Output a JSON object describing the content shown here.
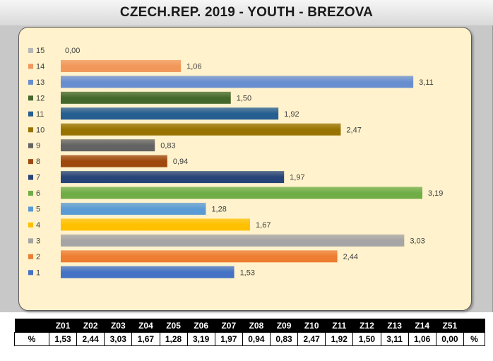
{
  "chart_data": {
    "type": "bar",
    "orientation": "horizontal",
    "title": "CZECH.REP. 2019 - YOUTH - BREZOVA",
    "categories": [
      "1",
      "2",
      "3",
      "4",
      "5",
      "6",
      "7",
      "8",
      "9",
      "10",
      "11",
      "12",
      "13",
      "14",
      "15"
    ],
    "values": [
      1.53,
      2.44,
      3.03,
      1.67,
      1.28,
      3.19,
      1.97,
      0.94,
      0.83,
      2.47,
      1.92,
      1.5,
      3.11,
      1.06,
      0.0
    ],
    "value_labels": [
      "1,53",
      "2,44",
      "3,03",
      "1,67",
      "1,28",
      "3,19",
      "1,97",
      "0,94",
      "0,83",
      "2,47",
      "1,92",
      "1,50",
      "3,11",
      "1,06",
      "0,00"
    ],
    "colors": [
      "#4472c4",
      "#ed7d31",
      "#a5a5a5",
      "#ffc000",
      "#5b9bd5",
      "#70ad47",
      "#264478",
      "#9e480e",
      "#636363",
      "#997300",
      "#255e91",
      "#43682b",
      "#698ed0",
      "#f1975a",
      "#b7b7b7"
    ],
    "xlim": [
      0,
      3.5
    ],
    "grid": false,
    "legend": "left"
  },
  "table": {
    "headers": [
      "",
      "Z01",
      "Z02",
      "Z03",
      "Z04",
      "Z05",
      "Z06",
      "Z07",
      "Z08",
      "Z09",
      "Z10",
      "Z11",
      "Z12",
      "Z13",
      "Z14",
      "Z51",
      ""
    ],
    "row": [
      "%",
      "1,53",
      "2,44",
      "3,03",
      "1,67",
      "1,28",
      "3,19",
      "1,97",
      "0,94",
      "0,83",
      "2,47",
      "1,92",
      "1,50",
      "3,11",
      "1,06",
      "0,00",
      "%"
    ]
  }
}
